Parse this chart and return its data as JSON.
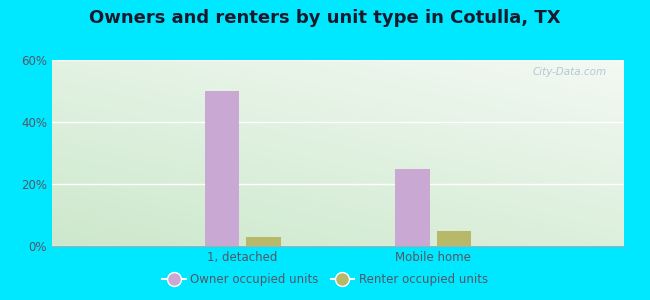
{
  "title": "Owners and renters by unit type in Cotulla, TX",
  "categories": [
    "1, detached",
    "Mobile home"
  ],
  "owner_values": [
    50,
    25
  ],
  "renter_values": [
    3,
    5
  ],
  "owner_color": "#c9a8d4",
  "renter_color": "#b8b86a",
  "ylim": [
    0,
    60
  ],
  "yticks": [
    0,
    20,
    40,
    60
  ],
  "ytick_labels": [
    "0%",
    "20%",
    "40%",
    "60%"
  ],
  "background_cyan": "#00e8ff",
  "plot_bg_color_topleft": "#d4edda",
  "plot_bg_color_topright": "#f0f8f0",
  "plot_bg_color_bottom": "#e8f4e8",
  "watermark": "City-Data.com",
  "bar_width": 0.18,
  "title_fontsize": 13,
  "title_color": "#1a1a2e",
  "tick_color": "#555566",
  "legend_label_owner": "Owner occupied units",
  "legend_label_renter": "Renter occupied units"
}
